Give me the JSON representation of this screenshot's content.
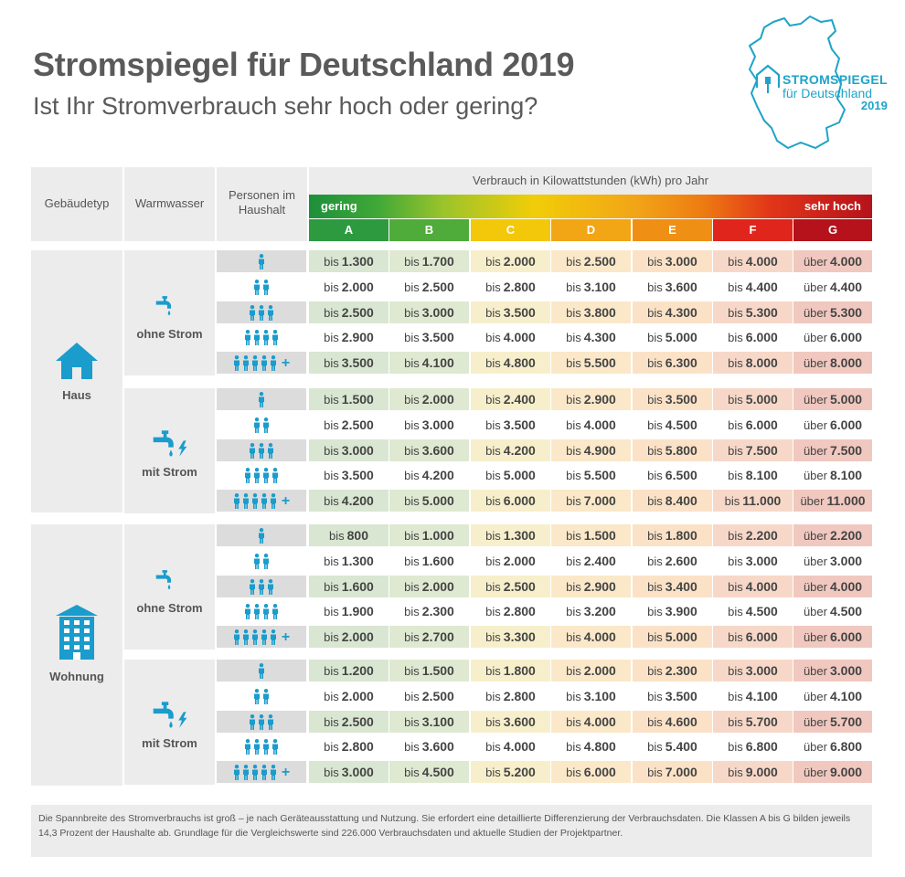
{
  "title": "Stromspiegel für Deutschland 2019",
  "subtitle": "Ist Ihr Stromverbrauch sehr hoch oder gering?",
  "logo": {
    "line1": "STROMSPIEGEL",
    "line2": "für Deutschland",
    "line3": "2019",
    "map_icon": "germany-map-icon",
    "house_icon": "house-plug-icon"
  },
  "header": {
    "gebaeudetyp": "Gebäudetyp",
    "warmwasser": "Warmwasser",
    "personen": "Personen im Haushalt",
    "verbrauch": "Verbrauch in Kilowattstunden (kWh) pro Jahr",
    "gering": "gering",
    "sehr_hoch": "sehr hoch",
    "classes": [
      "A",
      "B",
      "C",
      "D",
      "E",
      "F",
      "G"
    ]
  },
  "colors": {
    "accent": "#1a9ccc",
    "classes": [
      "#2d9a40",
      "#4fab3a",
      "#f3c80a",
      "#f2a515",
      "#ef8f14",
      "#e0251c",
      "#b5121b"
    ],
    "tints": [
      "#d9e6d2",
      "#dfe9d1",
      "#f7efcb",
      "#fae8c9",
      "#fbe2c7",
      "#f7d8c8",
      "#f0c8bf"
    ]
  },
  "building_types": [
    {
      "name": "Haus",
      "icon": "house-icon",
      "groups": [
        {
          "warmwasser": "ohne Strom",
          "icon": "tap-icon",
          "rows": [
            [
              "1.300",
              "1.700",
              "2.000",
              "2.500",
              "3.000",
              "4.000",
              "4.000"
            ],
            [
              "2.000",
              "2.500",
              "2.800",
              "3.100",
              "3.600",
              "4.400",
              "4.400"
            ],
            [
              "2.500",
              "3.000",
              "3.500",
              "3.800",
              "4.300",
              "5.300",
              "5.300"
            ],
            [
              "2.900",
              "3.500",
              "4.000",
              "4.300",
              "5.000",
              "6.000",
              "6.000"
            ],
            [
              "3.500",
              "4.100",
              "4.800",
              "5.500",
              "6.300",
              "8.000",
              "8.000"
            ]
          ]
        },
        {
          "warmwasser": "mit Strom",
          "icon": "tap-electric-icon",
          "rows": [
            [
              "1.500",
              "2.000",
              "2.400",
              "2.900",
              "3.500",
              "5.000",
              "5.000"
            ],
            [
              "2.500",
              "3.000",
              "3.500",
              "4.000",
              "4.500",
              "6.000",
              "6.000"
            ],
            [
              "3.000",
              "3.600",
              "4.200",
              "4.900",
              "5.800",
              "7.500",
              "7.500"
            ],
            [
              "3.500",
              "4.200",
              "5.000",
              "5.500",
              "6.500",
              "8.100",
              "8.100"
            ],
            [
              "4.200",
              "5.000",
              "6.000",
              "7.000",
              "8.400",
              "11.000",
              "11.000"
            ]
          ]
        }
      ]
    },
    {
      "name": "Wohnung",
      "icon": "apartment-building-icon",
      "groups": [
        {
          "warmwasser": "ohne Strom",
          "icon": "tap-icon",
          "rows": [
            [
              "800",
              "1.000",
              "1.300",
              "1.500",
              "1.800",
              "2.200",
              "2.200"
            ],
            [
              "1.300",
              "1.600",
              "2.000",
              "2.400",
              "2.600",
              "3.000",
              "3.000"
            ],
            [
              "1.600",
              "2.000",
              "2.500",
              "2.900",
              "3.400",
              "4.000",
              "4.000"
            ],
            [
              "1.900",
              "2.300",
              "2.800",
              "3.200",
              "3.900",
              "4.500",
              "4.500"
            ],
            [
              "2.000",
              "2.700",
              "3.300",
              "4.000",
              "5.000",
              "6.000",
              "6.000"
            ]
          ]
        },
        {
          "warmwasser": "mit Strom",
          "icon": "tap-electric-icon",
          "rows": [
            [
              "1.200",
              "1.500",
              "1.800",
              "2.000",
              "2.300",
              "3.000",
              "3.000"
            ],
            [
              "2.000",
              "2.500",
              "2.800",
              "3.100",
              "3.500",
              "4.100",
              "4.100"
            ],
            [
              "2.500",
              "3.100",
              "3.600",
              "4.000",
              "4.600",
              "5.700",
              "5.700"
            ],
            [
              "2.800",
              "3.600",
              "4.000",
              "4.800",
              "5.400",
              "6.800",
              "6.800"
            ],
            [
              "3.000",
              "4.500",
              "5.200",
              "6.000",
              "7.000",
              "9.000",
              "9.000"
            ]
          ]
        }
      ]
    }
  ],
  "persons": [
    1,
    2,
    3,
    4,
    5
  ],
  "prefix_bis": "bis",
  "prefix_ueber": "über",
  "plus_sign": "+",
  "person_icon": "person-icon",
  "footnote": "Die Spannbreite des Stromverbrauchs ist groß – je nach Geräteausstattung und Nutzung. Sie erfordert eine detaillierte Differenzierung der Verbrauchsdaten. Die Klassen A bis G bilden jeweils 14,3 Prozent der Haushalte ab. Grundlage für die Vergleichswerte sind 226.000 Verbrauchsdaten und aktuelle Studien der Projektpartner."
}
